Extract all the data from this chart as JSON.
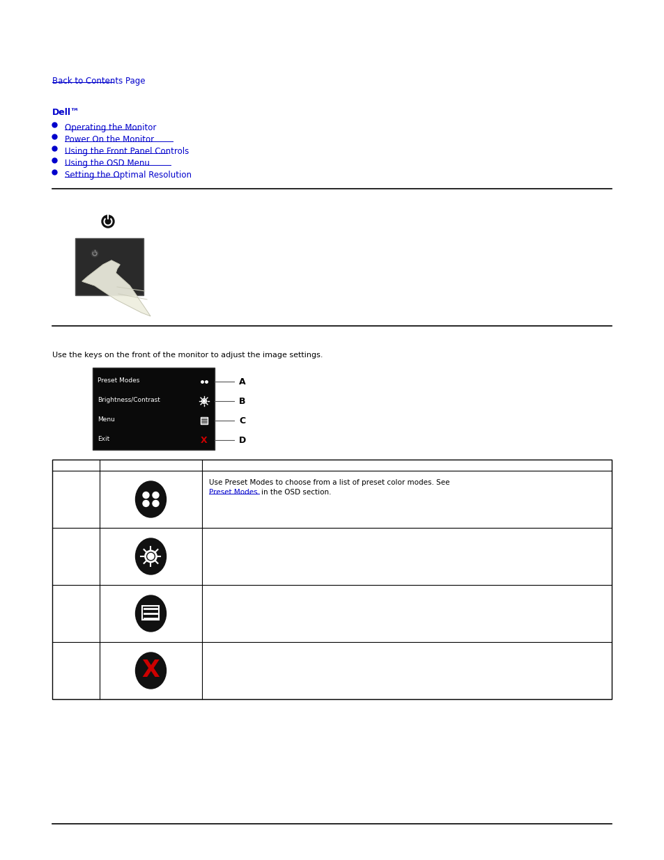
{
  "bg_color": "#ffffff",
  "link_color": "#0000cc",
  "text_color": "#000000",
  "blue_bullet_color": "#0000cc",
  "top_link": "Back to Contents Page",
  "dell_label": "Dell™",
  "nav_links": [
    "Operating the Monitor",
    "Power On the Monitor",
    "Using the Front Panel Controls",
    "Using the OSD Menu",
    "Setting the Optimal Resolution"
  ],
  "section2_subtitle": "Use the keys on the front of the monitor to adjust the image settings.",
  "menu_items": [
    "Preset Modes",
    "Brightness/Contrast",
    "Menu",
    "Exit"
  ],
  "menu_labels": [
    "A",
    "B",
    "C",
    "D"
  ],
  "table_row1_link": "Preset Modes",
  "hr_color": "#000000"
}
